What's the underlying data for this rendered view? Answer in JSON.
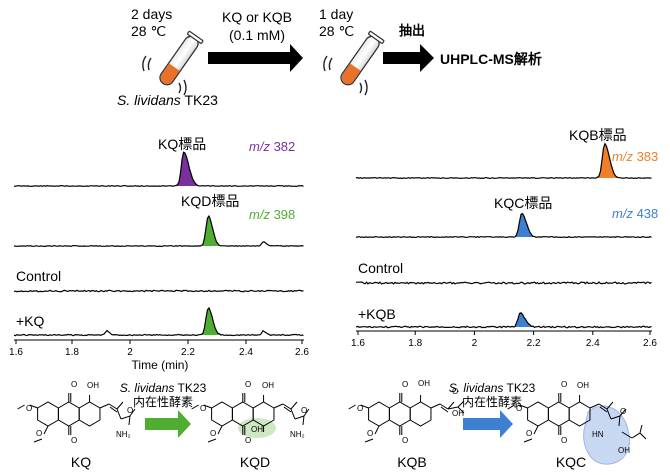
{
  "workflow": {
    "step1_line1": "2 days",
    "step1_line2": "28 ℃",
    "treatment_line1": "KQ or KQB",
    "treatment_line2": "(0.1 mM)",
    "step2_line1": "1 day",
    "step2_line2": "28 ℃",
    "extraction_label": "抽出",
    "analysis_label": "UHPLC-MS解析",
    "strain_italic": "S. lividans",
    "strain_suffix": " TK23"
  },
  "left_panel": {
    "trace1_label": "KQ標品",
    "trace1_mz_prefix": "m/z",
    "trace1_mz_value": " 382",
    "trace2_label": "KQD標品",
    "trace2_mz_prefix": "m/z",
    "trace2_mz_value": " 398",
    "trace3_label": "Control",
    "trace4_label": "+KQ",
    "axis_ticks": [
      "1.6",
      "1.8",
      "2",
      "2.2",
      "2.4",
      "2.6"
    ],
    "axis_label": "Time (min)",
    "colors": {
      "trace1": "#7b2f9e",
      "trace2": "#4fae32"
    }
  },
  "right_panel": {
    "trace1_label": "KQB標品",
    "trace1_mz_prefix": "m/z",
    "trace1_mz_value": " 383",
    "trace2_label": "KQC標品",
    "trace2_mz_prefix": "m/z",
    "trace2_mz_value": " 438",
    "trace3_label": "Control",
    "trace4_label": "+KQB",
    "axis_ticks": [
      "1.6",
      "1.8",
      "2",
      "2.2",
      "2.4",
      "2.6"
    ],
    "axis_label": "Time (min)",
    "colors": {
      "trace1": "#f07f2a",
      "trace2": "#3d7fd1"
    }
  },
  "conversions": {
    "left": {
      "enzyme_italic": "S. lividans",
      "enzyme_suffix": " TK23",
      "enzyme_line2": "内在性酵素",
      "substrate": "KQ",
      "product": "KQD",
      "group_labels": [
        "OH",
        "O",
        "O",
        "O",
        "O",
        "O",
        "NH₂",
        "OH",
        "OH",
        "O",
        "O",
        "O",
        "O",
        "O",
        "NH₂"
      ],
      "arrow_color": "#4fae32"
    },
    "right": {
      "enzyme_italic": "S. lividans",
      "enzyme_suffix": " TK23",
      "enzyme_line2": "内在性酵素",
      "substrate": "KQB",
      "product": "KQC",
      "group_labels": [
        "OH",
        "O",
        "O",
        "O",
        "O",
        "O",
        "OH",
        "OH",
        "O",
        "O",
        "O",
        "O",
        "HN",
        "O",
        "OH"
      ],
      "arrow_color": "#3d7fd1"
    }
  }
}
